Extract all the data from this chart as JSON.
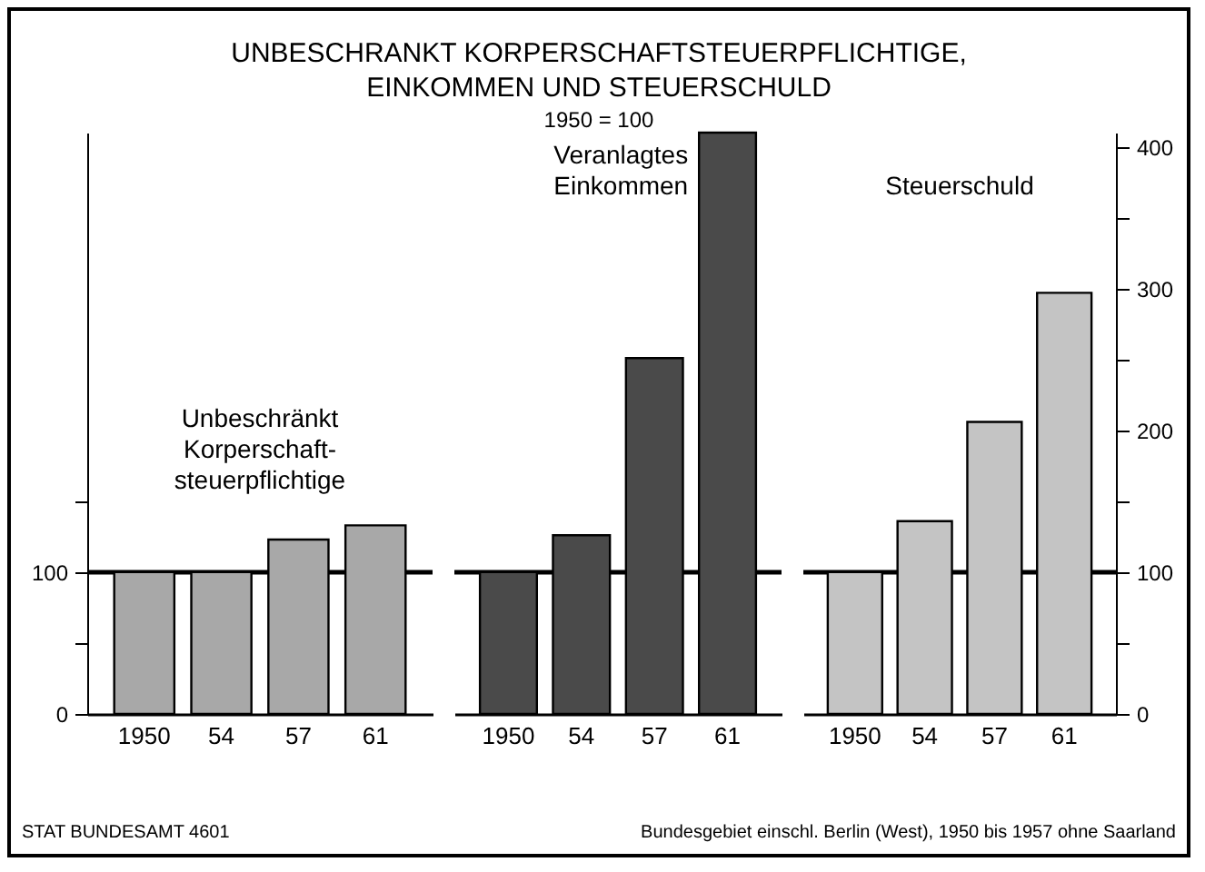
{
  "chart_data": [
    {
      "type": "bar",
      "categories": [
        "1950",
        "54",
        "57",
        "61"
      ],
      "series": [
        {
          "name": "Unbeschränkt Korperschaft-steuerpflichtige",
          "color": "#a8a8a8",
          "values": [
            100,
            100,
            123,
            133
          ]
        }
      ],
      "ylim": [
        0,
        410
      ],
      "yticks": [
        0,
        {
          "value": 50,
          "label": null
        },
        100,
        {
          "value": 150,
          "label": null
        }
      ],
      "ref_lines": [
        {
          "axis": "y",
          "value": 100
        }
      ],
      "annotations": [
        "STAT BUNDESAMT 4601"
      ]
    },
    {
      "type": "bar",
      "title": "UNBESCHRANKT KORPERSCHAFTSTEUERPFLICHTIGE, EINKOMMEN UND STEUERSCHULD",
      "subtitle": "1950 = 100",
      "categories": [
        "1950",
        "54",
        "57",
        "61"
      ],
      "series": [
        {
          "name": "Veranlagtes Einkommen",
          "color": "#4a4a4a",
          "values": [
            100,
            126,
            251,
            410
          ]
        }
      ],
      "ylim": [
        0,
        410
      ],
      "tick_labels": "x",
      "ref_lines": [
        {
          "axis": "y",
          "value": 100
        }
      ]
    },
    {
      "type": "bar",
      "categories": [
        "1950",
        "54",
        "57",
        "61"
      ],
      "series": [
        {
          "name": "Steuerschuld",
          "color": "#c4c4c4",
          "values": [
            100,
            136,
            206,
            297
          ],
          "axis": "y2"
        }
      ],
      "y2lim": [
        0,
        410
      ],
      "y2ticks": [
        0,
        {
          "value": 50,
          "label": null
        },
        100,
        {
          "value": 150,
          "label": null
        },
        200,
        {
          "value": 250,
          "label": null
        },
        300,
        {
          "value": 350,
          "label": null
        },
        400
      ],
      "ref_lines": [
        {
          "axis": "y2",
          "value": 100
        }
      ],
      "annotations": [
        "Bundesgebiet einschl. Berlin (West), 1950 bis 1957 ohne Saarland"
      ]
    }
  ]
}
